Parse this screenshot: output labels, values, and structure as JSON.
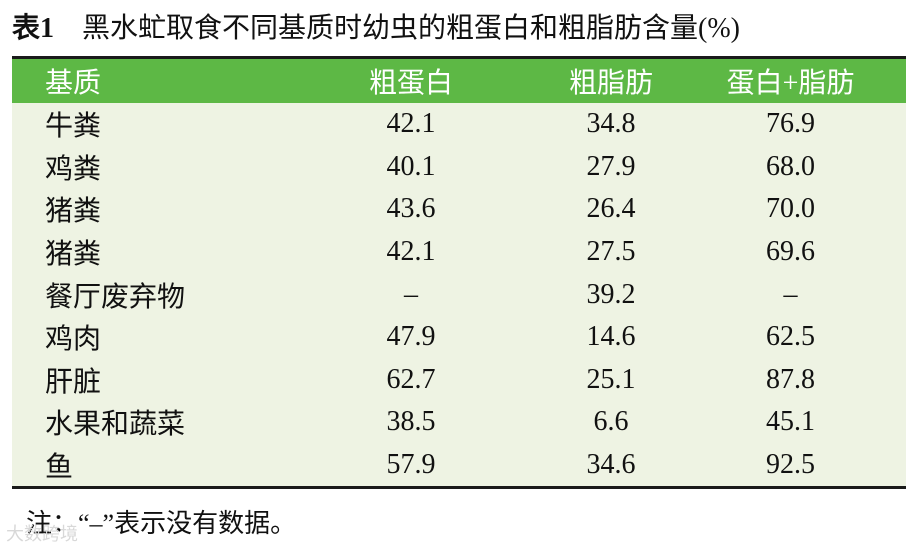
{
  "caption": {
    "label": "表1",
    "title": "黑水虻取食不同基质时幼虫的粗蛋白和粗脂肪含量(%)"
  },
  "table": {
    "header": [
      "基质",
      "粗蛋白",
      "粗脂肪",
      "蛋白+脂肪"
    ],
    "rows": [
      [
        "牛粪",
        "42.1",
        "34.8",
        "76.9"
      ],
      [
        "鸡粪",
        "40.1",
        "27.9",
        "68.0"
      ],
      [
        "猪粪",
        "43.6",
        "26.4",
        "70.0"
      ],
      [
        "猪粪",
        "42.1",
        "27.5",
        "69.6"
      ],
      [
        "餐厅废弃物",
        "–",
        "39.2",
        "–"
      ],
      [
        "鸡肉",
        "47.9",
        "14.6",
        "62.5"
      ],
      [
        "肝脏",
        "62.7",
        "25.1",
        "87.8"
      ],
      [
        "水果和蔬菜",
        "38.5",
        "6.6",
        "45.1"
      ],
      [
        "鱼",
        "57.9",
        "34.6",
        "92.5"
      ]
    ]
  },
  "note": "注：“–”表示没有数据。",
  "watermark": "大数跨境"
}
